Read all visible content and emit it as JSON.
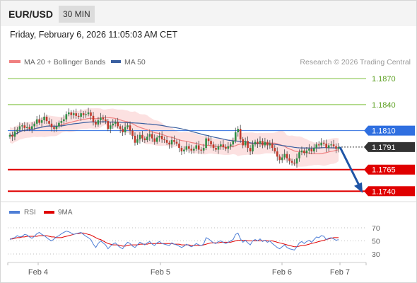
{
  "header": {
    "symbol": "EUR/USD",
    "timeframe": "30 MIN",
    "timestamp": "Friday, February 6, 2026 11:05:03 AM CET"
  },
  "colors": {
    "candle_up": "#2f8f46",
    "candle_down": "#c0392b",
    "ma20": "#f08080",
    "bollinger_fill": "#fbd7d7",
    "ma50": "#3a5fa0",
    "support": "#e00000",
    "resistance_target": "#7cbf3a",
    "pivot": "#2f6fe0",
    "current_price": "#333333",
    "forecast_arrow": "#1f55a6",
    "rsi": "#4f7fd6",
    "rsi_ma": "#e00000"
  },
  "chart_data": [
    {
      "type": "candlestick",
      "title": "EUR/USD",
      "legend": [
        {
          "name": "MA 20 + Bollinger Bands",
          "color": "#f08080"
        },
        {
          "name": "MA 50",
          "color": "#3a5fa0"
        }
      ],
      "credit": "Research © 2026 Trading Central",
      "x_ticks": [
        "Feb 4",
        "Feb 5",
        "Feb 6",
        "Feb 7"
      ],
      "ylim": [
        1.1728,
        1.1884
      ],
      "levels": [
        {
          "label": "1.1870",
          "value": 1.187,
          "kind": "target"
        },
        {
          "label": "1.1840",
          "value": 1.184,
          "kind": "target"
        },
        {
          "label": "1.1810",
          "value": 1.181,
          "kind": "pivot"
        },
        {
          "label": "1.1791",
          "value": 1.1791,
          "kind": "current"
        },
        {
          "label": "1.1765",
          "value": 1.1765,
          "kind": "support"
        },
        {
          "label": "1.1740",
          "value": 1.174,
          "kind": "support"
        }
      ],
      "close": [
        1.1805,
        1.1803,
        1.1809,
        1.1811,
        1.1815,
        1.1816,
        1.1813,
        1.1814,
        1.1812,
        1.1815,
        1.1818,
        1.1823,
        1.1819,
        1.1822,
        1.1826,
        1.1821,
        1.1818,
        1.1814,
        1.1812,
        1.1815,
        1.1819,
        1.1821,
        1.1823,
        1.1829,
        1.1831,
        1.1828,
        1.183,
        1.1827,
        1.1826,
        1.183,
        1.1828,
        1.1829,
        1.1831,
        1.1827,
        1.182,
        1.1817,
        1.1822,
        1.1825,
        1.1823,
        1.1821,
        1.1812,
        1.1816,
        1.1818,
        1.182,
        1.1815,
        1.1812,
        1.1808,
        1.1814,
        1.1816,
        1.181,
        1.1804,
        1.1796,
        1.18,
        1.1805,
        1.1801,
        1.1799,
        1.1803,
        1.1806,
        1.1801,
        1.1797,
        1.1802,
        1.1804,
        1.18,
        1.1799,
        1.1796,
        1.1794,
        1.1799,
        1.1797,
        1.1795,
        1.179,
        1.1786,
        1.1788,
        1.1792,
        1.1789,
        1.1787,
        1.1789,
        1.1793,
        1.1788,
        1.1787,
        1.179,
        1.1801,
        1.1798,
        1.1794,
        1.179,
        1.1788,
        1.1792,
        1.1794,
        1.1791,
        1.1789,
        1.1792,
        1.1794,
        1.1798,
        1.1808,
        1.1812,
        1.18,
        1.1793,
        1.1798,
        1.179,
        1.1786,
        1.1794,
        1.1797,
        1.1795,
        1.1798,
        1.1793,
        1.1797,
        1.1793,
        1.1795,
        1.179,
        1.1786,
        1.178,
        1.1776,
        1.1779,
        1.1783,
        1.1778,
        1.1775,
        1.1773,
        1.1772,
        1.1778,
        1.1785,
        1.1787,
        1.1784,
        1.1787,
        1.1789,
        1.1786,
        1.179,
        1.1794,
        1.1793,
        1.1796,
        1.1795,
        1.179,
        1.1793,
        1.1794,
        1.1792,
        1.1789,
        1.1791
      ],
      "rsi_panel": {
        "legend": [
          {
            "name": "RSI",
            "color": "#4f7fd6"
          },
          {
            "name": "9MA",
            "color": "#e00000"
          }
        ],
        "ylim": [
          20,
          80
        ],
        "ticks": [
          70,
          50,
          30
        ],
        "rsi": [
          52,
          54,
          55,
          58,
          56,
          57,
          60,
          59,
          56,
          54,
          57,
          61,
          63,
          60,
          58,
          55,
          52,
          50,
          53,
          56,
          58,
          61,
          63,
          65,
          64,
          62,
          60,
          61,
          62,
          63,
          60,
          57,
          55,
          52,
          45,
          40,
          46,
          50,
          47,
          44,
          38,
          42,
          45,
          47,
          43,
          40,
          38,
          44,
          48,
          46,
          42,
          40,
          44,
          48,
          46,
          44,
          47,
          49,
          45,
          43,
          47,
          49,
          46,
          45,
          44,
          43,
          47,
          45,
          44,
          42,
          40,
          42,
          45,
          43,
          41,
          43,
          46,
          44,
          43,
          45,
          55,
          53,
          50,
          47,
          46,
          49,
          50,
          48,
          46,
          48,
          50,
          52,
          60,
          62,
          53,
          48,
          51,
          47,
          44,
          50,
          52,
          50,
          53,
          49,
          51,
          48,
          50,
          46,
          43,
          40,
          38,
          41,
          44,
          40,
          38,
          37,
          36,
          41,
          47,
          49,
          46,
          49,
          51,
          48,
          52,
          56,
          55,
          58,
          57,
          52,
          54,
          55,
          53,
          51,
          52
        ],
        "rsi_ma": [
          53,
          53,
          54,
          55,
          55,
          56,
          56,
          57,
          57,
          57,
          57,
          57,
          58,
          58,
          58,
          58,
          57,
          56,
          56,
          55,
          55,
          55,
          56,
          57,
          58,
          59,
          60,
          61,
          61,
          62,
          62,
          61,
          60,
          59,
          57,
          55,
          53,
          52,
          50,
          48,
          46,
          45,
          44,
          44,
          44,
          43,
          42,
          42,
          43,
          44,
          44,
          44,
          44,
          45,
          45,
          45,
          45,
          46,
          46,
          46,
          46,
          46,
          46,
          46,
          46,
          46,
          46,
          45,
          45,
          45,
          44,
          44,
          44,
          44,
          43,
          43,
          43,
          43,
          43,
          44,
          45,
          46,
          47,
          47,
          47,
          47,
          48,
          48,
          48,
          48,
          48,
          49,
          50,
          51,
          51,
          51,
          51,
          50,
          50,
          50,
          50,
          50,
          50,
          50,
          51,
          50,
          50,
          50,
          49,
          48,
          47,
          46,
          45,
          44,
          43,
          42,
          41,
          41,
          42,
          43,
          43,
          44,
          45,
          46,
          47,
          48,
          49,
          50,
          51,
          52,
          53,
          54,
          55,
          55,
          55
        ]
      }
    }
  ]
}
